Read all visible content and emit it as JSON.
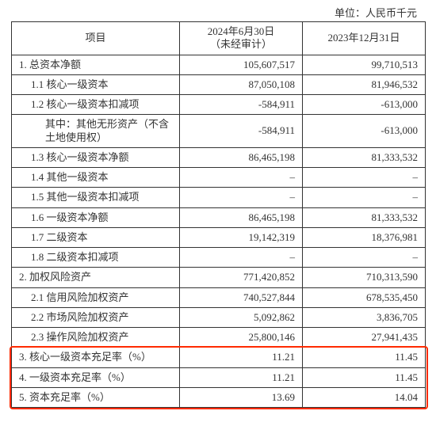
{
  "unit_label": "单位：人民币千元",
  "headers": {
    "project": "项目",
    "col1_line1": "2024年6月30日",
    "col1_line2": "（未经审计）",
    "col2": "2023年12月31日"
  },
  "rows": [
    {
      "label": "1. 总资本净额",
      "v1": "105,607,517",
      "v2": "99,710,513",
      "indent": 0
    },
    {
      "label": "1.1 核心一级资本",
      "v1": "87,050,108",
      "v2": "81,946,532",
      "indent": 1
    },
    {
      "label": "1.2 核心一级资本扣减项",
      "v1": "-584,911",
      "v2": "-613,000",
      "indent": 1
    },
    {
      "label": "其中：其他无形资产（不含土地使用权）",
      "v1": "-584,911",
      "v2": "-613,000",
      "indent": 2
    },
    {
      "label": "1.3 核心一级资本净额",
      "v1": "86,465,198",
      "v2": "81,333,532",
      "indent": 1
    },
    {
      "label": "1.4 其他一级资本",
      "v1": "–",
      "v2": "–",
      "indent": 1
    },
    {
      "label": "1.5 其他一级资本扣减项",
      "v1": "–",
      "v2": "–",
      "indent": 1
    },
    {
      "label": "1.6 一级资本净额",
      "v1": "86,465,198",
      "v2": "81,333,532",
      "indent": 1
    },
    {
      "label": "1.7 二级资本",
      "v1": "19,142,319",
      "v2": "18,376,981",
      "indent": 1
    },
    {
      "label": "1.8 二级资本扣减项",
      "v1": "–",
      "v2": "–",
      "indent": 1
    },
    {
      "label": "2. 加权风险资产",
      "v1": "771,420,852",
      "v2": "710,313,590",
      "indent": 0
    },
    {
      "label": "2.1 信用风险加权资产",
      "v1": "740,527,844",
      "v2": "678,535,450",
      "indent": 1
    },
    {
      "label": "2.2 市场风险加权资产",
      "v1": "5,092,862",
      "v2": "3,836,705",
      "indent": 1
    },
    {
      "label": "2.3 操作风险加权资产",
      "v1": "25,800,146",
      "v2": "27,941,435",
      "indent": 1
    },
    {
      "label": "3. 核心一级资本充足率（%）",
      "v1": "11.21",
      "v2": "11.45",
      "indent": 0,
      "hl": true
    },
    {
      "label": "4. 一级资本充足率（%）",
      "v1": "11.21",
      "v2": "11.45",
      "indent": 0,
      "hl": true
    },
    {
      "label": "5. 资本充足率（%）",
      "v1": "13.69",
      "v2": "14.04",
      "indent": 0,
      "hl": true
    }
  ],
  "highlight_color": "#ff2a00",
  "border_color": "#333333",
  "background_color": "#ffffff",
  "font_size": 13
}
